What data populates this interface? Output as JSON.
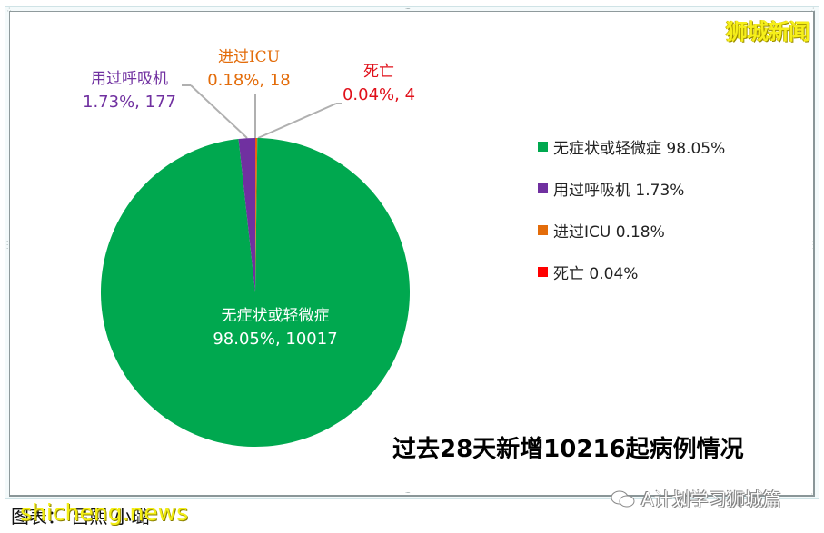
{
  "watermarks": {
    "top_right": "狮城新闻",
    "bottom_left": "shicheng.news",
    "bottom_right": "A计划学习狮城篇"
  },
  "caption": "图表： 吕熙 小璐",
  "title": "过去28天新增10216起病例情况",
  "legend": [
    {
      "label": "无症状或轻微症 98.05%",
      "color": "#00a84f"
    },
    {
      "label": "用过呼吸机 1.73%",
      "color": "#7030a0"
    },
    {
      "label": "进过ICU 0.18%",
      "color": "#e36c0a"
    },
    {
      "label": "死亡 0.04%",
      "color": "#ff0000"
    }
  ],
  "data_labels": {
    "mild": {
      "name": "无症状或轻微症",
      "value": "98.05%, 10017"
    },
    "ventilator": {
      "name": "用过呼吸机",
      "value": "1.73%, 177"
    },
    "icu": {
      "name": "进过ICU",
      "value": "0.18%, 18"
    },
    "death": {
      "name": "死亡",
      "value": "0.04%, 4"
    }
  },
  "chart_data": {
    "type": "pie",
    "title": "过去28天新增10216起病例情况",
    "categories": [
      "无症状或轻微症",
      "用过呼吸机",
      "进过ICU",
      "死亡"
    ],
    "values": [
      10017,
      177,
      18,
      4
    ],
    "percentages": [
      98.05,
      1.73,
      0.18,
      0.04
    ],
    "colors": [
      "#00a84f",
      "#7030a0",
      "#e36c0a",
      "#ff0000"
    ],
    "total": 10216,
    "legend_position": "right",
    "start_angle": "12 o'clock, counter-clockwise order: mild, ventilator... (small slices at top)"
  }
}
